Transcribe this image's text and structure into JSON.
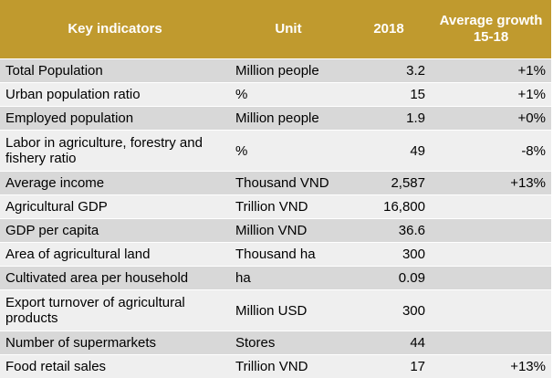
{
  "chart_data": {
    "type": "table",
    "columns": [
      "Key indicators",
      "Unit",
      "2018",
      "Average growth 15-18"
    ],
    "rows": [
      {
        "indicator": "Total Population",
        "unit": "Million people",
        "value_2018": "3.2",
        "growth": "+1%"
      },
      {
        "indicator": "Urban population ratio",
        "unit": "%",
        "value_2018": "15",
        "growth": "+1%"
      },
      {
        "indicator": "Employed population",
        "unit": "Million people",
        "value_2018": "1.9",
        "growth": "+0%"
      },
      {
        "indicator": "Labor in agriculture, forestry and fishery ratio",
        "unit": "%",
        "value_2018": "49",
        "growth": "-8%"
      },
      {
        "indicator": "Average income",
        "unit": "Thousand VND",
        "value_2018": "2,587",
        "growth": "+13%"
      },
      {
        "indicator": "Agricultural GDP",
        "unit": "Trillion VND",
        "value_2018": "16,800",
        "growth": ""
      },
      {
        "indicator": "GDP per capita",
        "unit": "Million VND",
        "value_2018": "36.6",
        "growth": ""
      },
      {
        "indicator": "Area of agricultural land",
        "unit": "Thousand ha",
        "value_2018": "300",
        "growth": ""
      },
      {
        "indicator": "Cultivated area per household",
        "unit": "ha",
        "value_2018": "0.09",
        "growth": ""
      },
      {
        "indicator": "Export turnover of agricultural products",
        "unit": "Million USD",
        "value_2018": "300",
        "growth": ""
      },
      {
        "indicator": "Number of supermarkets",
        "unit": "Stores",
        "value_2018": "44",
        "growth": ""
      },
      {
        "indicator": "Food retail sales",
        "unit": "Trillion VND",
        "value_2018": "17",
        "growth": "+13%"
      }
    ]
  },
  "colors": {
    "header_bg": "#c09a2e",
    "header_text": "#ffffff",
    "row_odd": "#d8d8d8",
    "row_even": "#efefef"
  }
}
